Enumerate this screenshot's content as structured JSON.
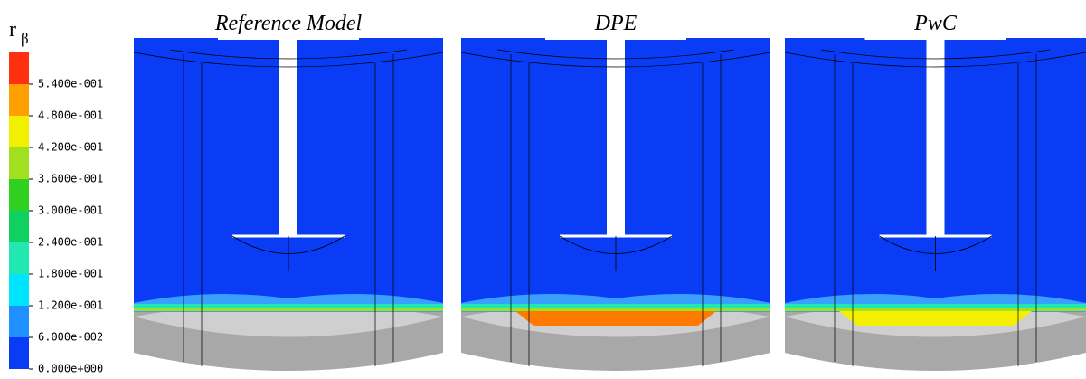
{
  "colorbar": {
    "label": "r",
    "label_subscript": "β",
    "colors": [
      "#0a3cf5",
      "#1e90ff",
      "#00e5ff",
      "#20e8b0",
      "#10d060",
      "#30d020",
      "#a0e020",
      "#f0f000",
      "#ffa000",
      "#ff3010"
    ],
    "range": [
      0,
      0.6
    ],
    "ticks": [
      {
        "value": 0,
        "label": "0.000e+000"
      },
      {
        "value": 0.06,
        "label": "6.000e-002"
      },
      {
        "value": 0.12,
        "label": "1.200e-001"
      },
      {
        "value": 0.18,
        "label": "1.800e-001"
      },
      {
        "value": 0.24,
        "label": "2.400e-001"
      },
      {
        "value": 0.3,
        "label": "3.000e-001"
      },
      {
        "value": 0.36,
        "label": "3.600e-001"
      },
      {
        "value": 0.42,
        "label": "4.200e-001"
      },
      {
        "value": 0.48,
        "label": "4.800e-001"
      },
      {
        "value": 0.54,
        "label": "5.400e-001"
      }
    ]
  },
  "panels": [
    {
      "title": "Reference Model"
    },
    {
      "title": "DPE"
    },
    {
      "title": "PwC"
    }
  ]
}
